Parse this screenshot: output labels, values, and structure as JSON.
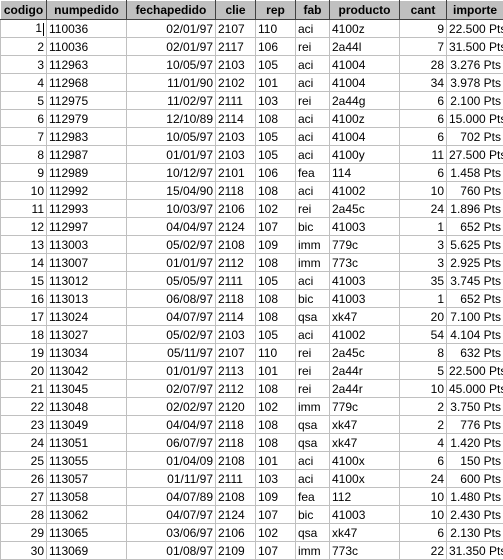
{
  "columns": [
    "codigo",
    "numpedido",
    "fechapedido",
    "clie",
    "rep",
    "fab",
    "producto",
    "cant",
    "importe"
  ],
  "rows": [
    [
      "1",
      "110036",
      "02/01/97",
      "2107",
      "110",
      "aci",
      "4100z",
      "9",
      "22.500 Pts"
    ],
    [
      "2",
      "110036",
      "02/01/97",
      "2117",
      "106",
      "rei",
      "2a44l",
      "7",
      "31.500 Pts"
    ],
    [
      "3",
      "112963",
      "10/05/97",
      "2103",
      "105",
      "aci",
      "41004",
      "28",
      "3.276 Pts"
    ],
    [
      "4",
      "112968",
      "11/01/90",
      "2102",
      "101",
      "aci",
      "41004",
      "34",
      "3.978 Pts"
    ],
    [
      "5",
      "112975",
      "11/02/97",
      "2111",
      "103",
      "rei",
      "2a44g",
      "6",
      "2.100 Pts"
    ],
    [
      "6",
      "112979",
      "12/10/89",
      "2114",
      "108",
      "aci",
      "4100z",
      "6",
      "15.000 Pts"
    ],
    [
      "7",
      "112983",
      "10/05/97",
      "2103",
      "105",
      "aci",
      "41004",
      "6",
      "702 Pts"
    ],
    [
      "8",
      "112987",
      "01/01/97",
      "2103",
      "105",
      "aci",
      "4100y",
      "11",
      "27.500 Pts"
    ],
    [
      "9",
      "112989",
      "10/12/97",
      "2101",
      "106",
      "fea",
      "114",
      "6",
      "1.458 Pts"
    ],
    [
      "10",
      "112992",
      "15/04/90",
      "2118",
      "108",
      "aci",
      "41002",
      "10",
      "760 Pts"
    ],
    [
      "11",
      "112993",
      "10/03/97",
      "2106",
      "102",
      "rei",
      "2a45c",
      "24",
      "1.896 Pts"
    ],
    [
      "12",
      "112997",
      "04/04/97",
      "2124",
      "107",
      "bic",
      "41003",
      "1",
      "652 Pts"
    ],
    [
      "13",
      "113003",
      "05/02/97",
      "2108",
      "109",
      "imm",
      "779c",
      "3",
      "5.625 Pts"
    ],
    [
      "14",
      "113007",
      "01/01/97",
      "2112",
      "108",
      "imm",
      "773c",
      "3",
      "2.925 Pts"
    ],
    [
      "15",
      "113012",
      "05/05/97",
      "2111",
      "105",
      "aci",
      "41003",
      "35",
      "3.745 Pts"
    ],
    [
      "16",
      "113013",
      "06/08/97",
      "2118",
      "108",
      "bic",
      "41003",
      "1",
      "652 Pts"
    ],
    [
      "17",
      "113024",
      "04/07/97",
      "2114",
      "108",
      "qsa",
      "xk47",
      "20",
      "7.100 Pts"
    ],
    [
      "18",
      "113027",
      "05/02/97",
      "2103",
      "105",
      "aci",
      "41002",
      "54",
      "4.104 Pts"
    ],
    [
      "19",
      "113034",
      "05/11/97",
      "2107",
      "110",
      "rei",
      "2a45c",
      "8",
      "632 Pts"
    ],
    [
      "20",
      "113042",
      "01/01/97",
      "2113",
      "101",
      "rei",
      "2a44r",
      "5",
      "22.500 Pts"
    ],
    [
      "21",
      "113045",
      "02/07/97",
      "2112",
      "108",
      "rei",
      "2a44r",
      "10",
      "45.000 Pts"
    ],
    [
      "22",
      "113048",
      "02/02/97",
      "2120",
      "102",
      "imm",
      "779c",
      "2",
      "3.750 Pts"
    ],
    [
      "23",
      "113049",
      "04/04/97",
      "2118",
      "108",
      "qsa",
      "xk47",
      "2",
      "776 Pts"
    ],
    [
      "24",
      "113051",
      "06/07/97",
      "2118",
      "108",
      "qsa",
      "xk47",
      "4",
      "1.420 Pts"
    ],
    [
      "25",
      "113055",
      "01/04/09",
      "2108",
      "101",
      "aci",
      "4100x",
      "6",
      "150 Pts"
    ],
    [
      "26",
      "113057",
      "01/11/97",
      "2111",
      "103",
      "aci",
      "4100x",
      "24",
      "600 Pts"
    ],
    [
      "27",
      "113058",
      "04/07/89",
      "2108",
      "109",
      "fea",
      "112",
      "10",
      "1.480 Pts"
    ],
    [
      "28",
      "113062",
      "04/07/97",
      "2124",
      "107",
      "bic",
      "41003",
      "10",
      "2.430 Pts"
    ],
    [
      "29",
      "113065",
      "03/06/97",
      "2106",
      "102",
      "qsa",
      "xk47",
      "6",
      "2.130 Pts"
    ],
    [
      "30",
      "113069",
      "01/08/97",
      "2109",
      "107",
      "imm",
      "773c",
      "22",
      "31.350 Pts"
    ]
  ],
  "align": [
    "r",
    "l",
    "r",
    "l",
    "l",
    "l",
    "l",
    "r",
    "r"
  ],
  "colors": {
    "header_bg": "#c0c0c0",
    "grid_line": "#c0c0c0"
  },
  "focus": {
    "row": 0,
    "col": 0
  }
}
